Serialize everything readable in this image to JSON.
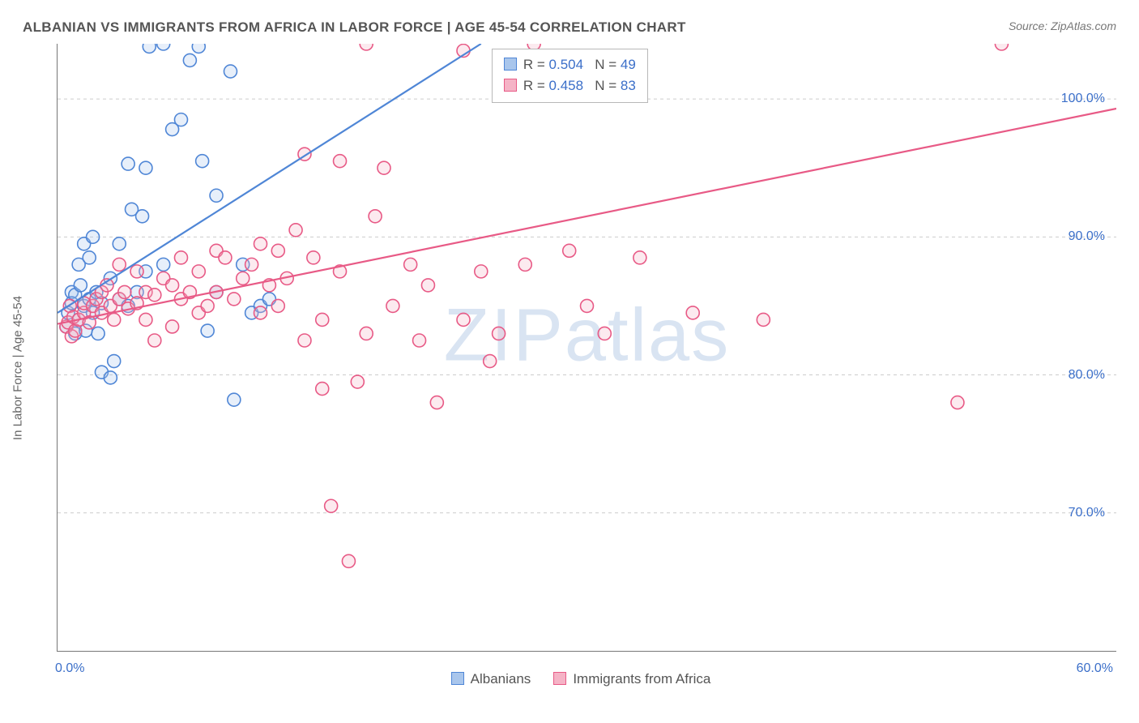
{
  "title": "ALBANIAN VS IMMIGRANTS FROM AFRICA IN LABOR FORCE | AGE 45-54 CORRELATION CHART",
  "source": "Source: ZipAtlas.com",
  "ylabel": "In Labor Force | Age 45-54",
  "watermark": "ZIPatlas",
  "chart": {
    "type": "scatter",
    "xlim": [
      0,
      60
    ],
    "ylim": [
      60,
      104
    ],
    "yticks": [
      70,
      80,
      90,
      100
    ],
    "ytick_labels": [
      "70.0%",
      "80.0%",
      "90.0%",
      "100.0%"
    ],
    "xtick_positions": [
      0,
      10,
      20,
      30,
      40,
      50,
      60
    ],
    "xtick_end_labels": {
      "left": "0.0%",
      "right": "60.0%"
    },
    "background_color": "#ffffff",
    "grid_color": "#cccccc",
    "axis_color": "#777777",
    "marker_radius": 8,
    "marker_opacity": 0.28,
    "series": [
      {
        "key": "albanians",
        "name": "Albanians",
        "color_stroke": "#4f86d6",
        "color_fill": "#a9c6ec",
        "R": 0.504,
        "N": 49,
        "trend": {
          "x1": 0,
          "y1": 84.5,
          "x2": 24,
          "y2": 104
        },
        "points": [
          [
            0.5,
            83.5
          ],
          [
            0.6,
            84.5
          ],
          [
            0.8,
            86.0
          ],
          [
            0.8,
            85.2
          ],
          [
            1.0,
            85.8
          ],
          [
            1.0,
            83.0
          ],
          [
            1.2,
            88.0
          ],
          [
            1.2,
            84.0
          ],
          [
            1.3,
            86.5
          ],
          [
            1.5,
            85.0
          ],
          [
            1.5,
            89.5
          ],
          [
            1.6,
            83.2
          ],
          [
            1.8,
            85.5
          ],
          [
            1.8,
            88.5
          ],
          [
            2.0,
            84.5
          ],
          [
            2.0,
            90.0
          ],
          [
            2.2,
            86.0
          ],
          [
            2.3,
            83.0
          ],
          [
            2.5,
            85.2
          ],
          [
            2.5,
            80.2
          ],
          [
            3.0,
            87.0
          ],
          [
            3.0,
            79.8
          ],
          [
            3.2,
            81.0
          ],
          [
            3.5,
            85.5
          ],
          [
            3.5,
            89.5
          ],
          [
            4.0,
            85.0
          ],
          [
            4.0,
            95.3
          ],
          [
            4.2,
            92.0
          ],
          [
            4.5,
            86.0
          ],
          [
            4.8,
            91.5
          ],
          [
            5.0,
            87.5
          ],
          [
            5.0,
            95.0
          ],
          [
            5.2,
            103.8
          ],
          [
            6.0,
            88.0
          ],
          [
            6.0,
            104.0
          ],
          [
            6.5,
            97.8
          ],
          [
            7.0,
            98.5
          ],
          [
            7.5,
            102.8
          ],
          [
            8.0,
            103.8
          ],
          [
            8.2,
            95.5
          ],
          [
            8.5,
            83.2
          ],
          [
            9.0,
            93.0
          ],
          [
            9.0,
            86.0
          ],
          [
            9.8,
            102.0
          ],
          [
            10.0,
            78.2
          ],
          [
            10.5,
            88.0
          ],
          [
            11.0,
            84.5
          ],
          [
            11.5,
            85.0
          ],
          [
            12.0,
            85.5
          ]
        ]
      },
      {
        "key": "africa",
        "name": "Immigrants from Africa",
        "color_stroke": "#e85a86",
        "color_fill": "#f5b3c6",
        "R": 0.458,
        "N": 83,
        "trend": {
          "x1": 0,
          "y1": 83.7,
          "x2": 60,
          "y2": 99.3
        },
        "points": [
          [
            0.5,
            83.5
          ],
          [
            0.6,
            83.8
          ],
          [
            0.7,
            85.0
          ],
          [
            0.8,
            82.8
          ],
          [
            0.9,
            84.2
          ],
          [
            1.0,
            83.2
          ],
          [
            1.2,
            84.0
          ],
          [
            1.5,
            84.5
          ],
          [
            1.5,
            85.2
          ],
          [
            1.8,
            83.8
          ],
          [
            2.0,
            85.0
          ],
          [
            2.2,
            85.5
          ],
          [
            2.5,
            86.0
          ],
          [
            2.5,
            84.5
          ],
          [
            2.8,
            86.5
          ],
          [
            3.0,
            85.0
          ],
          [
            3.2,
            84.0
          ],
          [
            3.5,
            85.5
          ],
          [
            3.5,
            88.0
          ],
          [
            3.8,
            86.0
          ],
          [
            4.0,
            84.8
          ],
          [
            4.5,
            85.2
          ],
          [
            4.5,
            87.5
          ],
          [
            5.0,
            86.0
          ],
          [
            5.0,
            84.0
          ],
          [
            5.5,
            82.5
          ],
          [
            5.5,
            85.8
          ],
          [
            6.0,
            87.0
          ],
          [
            6.5,
            83.5
          ],
          [
            6.5,
            86.5
          ],
          [
            7.0,
            85.5
          ],
          [
            7.0,
            88.5
          ],
          [
            7.5,
            86.0
          ],
          [
            8.0,
            87.5
          ],
          [
            8.0,
            84.5
          ],
          [
            8.5,
            85.0
          ],
          [
            9.0,
            89.0
          ],
          [
            9.0,
            86.0
          ],
          [
            9.5,
            88.5
          ],
          [
            10.0,
            85.5
          ],
          [
            10.5,
            87.0
          ],
          [
            11.0,
            88.0
          ],
          [
            11.5,
            89.5
          ],
          [
            11.5,
            84.5
          ],
          [
            12.0,
            86.5
          ],
          [
            12.5,
            85.0
          ],
          [
            12.5,
            89.0
          ],
          [
            13.0,
            87.0
          ],
          [
            13.5,
            90.5
          ],
          [
            14.0,
            82.5
          ],
          [
            14.0,
            96.0
          ],
          [
            14.5,
            88.5
          ],
          [
            15.0,
            79.0
          ],
          [
            15.0,
            84.0
          ],
          [
            15.5,
            70.5
          ],
          [
            16.0,
            95.5
          ],
          [
            16.0,
            87.5
          ],
          [
            16.5,
            66.5
          ],
          [
            17.0,
            79.5
          ],
          [
            17.5,
            83.0
          ],
          [
            17.5,
            104.0
          ],
          [
            18.0,
            91.5
          ],
          [
            18.5,
            95.0
          ],
          [
            19.0,
            85.0
          ],
          [
            20.0,
            88.0
          ],
          [
            20.5,
            82.5
          ],
          [
            21.0,
            86.5
          ],
          [
            21.5,
            78.0
          ],
          [
            23.0,
            103.5
          ],
          [
            23.0,
            84.0
          ],
          [
            24.0,
            87.5
          ],
          [
            24.5,
            81.0
          ],
          [
            25.0,
            83.0
          ],
          [
            26.5,
            88.0
          ],
          [
            27.0,
            104.0
          ],
          [
            29.0,
            89.0
          ],
          [
            30.0,
            85.0
          ],
          [
            31.0,
            83.0
          ],
          [
            33.0,
            88.5
          ],
          [
            36.0,
            84.5
          ],
          [
            40.0,
            84.0
          ],
          [
            51.0,
            78.0
          ],
          [
            53.5,
            104.0
          ]
        ]
      }
    ],
    "legend_box": {
      "left_pct": 41
    },
    "bottom_legend": {
      "items": [
        {
          "label": "Albanians",
          "series_key": "albanians"
        },
        {
          "label": "Immigrants from Africa",
          "series_key": "africa"
        }
      ]
    }
  }
}
